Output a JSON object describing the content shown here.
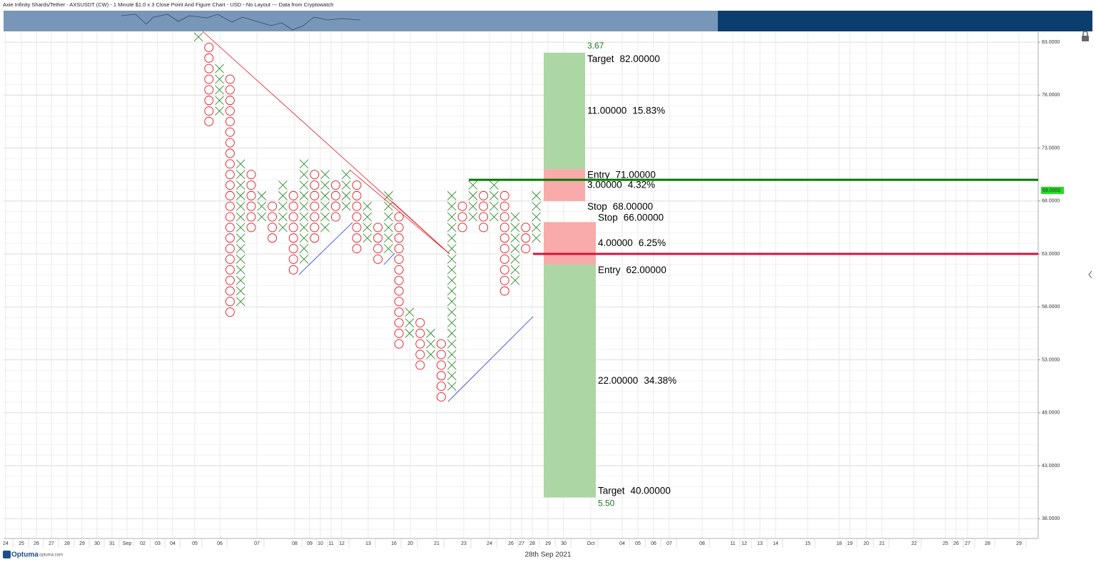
{
  "chart_data": {
    "type": "pnf",
    "title": "Axie Infinity Shards/Tether - AXSUSDT (CW) - 1 Minute $1.0 x 3 Close Point And Figure Chart - USD - No Layout --- Data from Cryptowatch",
    "ylim": [
      36.8,
      83.95
    ],
    "yticks": [
      {
        "value": 83,
        "label": "83.0000"
      },
      {
        "value": 78,
        "label": "78.0000"
      },
      {
        "value": 73,
        "label": "73.0000"
      },
      {
        "value": 68,
        "label": "68.0000"
      },
      {
        "value": 63,
        "label": "63.0000"
      },
      {
        "value": 58,
        "label": "58.0000"
      },
      {
        "value": 53,
        "label": "53.0000"
      },
      {
        "value": 48,
        "label": "48.0000"
      },
      {
        "value": 43,
        "label": "43.0000"
      },
      {
        "value": 38,
        "label": "38.0000"
      }
    ],
    "grid": true,
    "x_labels": [
      "24",
      "25",
      "26",
      "27",
      "28",
      "29",
      "30",
      "31",
      "Sep",
      "02",
      "03",
      "04",
      "05",
      "06",
      "07",
      "08",
      "09",
      "10",
      "11",
      "12",
      "13",
      "16",
      "20",
      "21",
      "23",
      "24",
      "26",
      "27",
      "28",
      "29",
      "30",
      "Oct",
      "04",
      "05",
      "06",
      "07",
      "08",
      "11",
      "12",
      "13",
      "14",
      "15",
      "18",
      "19",
      "20",
      "21",
      "22",
      "25",
      "26",
      "27",
      "28",
      "29"
    ],
    "x_caption": "28th Sep 2021",
    "x_color": "#2e8b2e",
    "o_color": "#e8141e",
    "columns": [
      {
        "kind": "X",
        "low": 83,
        "high": 84
      },
      {
        "kind": "O",
        "low": 75,
        "high": 83
      },
      {
        "kind": "X",
        "low": 76,
        "high": 81
      },
      {
        "kind": "O",
        "low": 57,
        "high": 80
      },
      {
        "kind": "X",
        "low": 58,
        "high": 72
      },
      {
        "kind": "O",
        "low": 65,
        "high": 71
      },
      {
        "kind": "X",
        "low": 66,
        "high": 69
      },
      {
        "kind": "O",
        "low": 64,
        "high": 68
      },
      {
        "kind": "X",
        "low": 65,
        "high": 70
      },
      {
        "kind": "O",
        "low": 61,
        "high": 69
      },
      {
        "kind": "X",
        "low": 62,
        "high": 72
      },
      {
        "kind": "O",
        "low": 64,
        "high": 71
      },
      {
        "kind": "X",
        "low": 65,
        "high": 71
      },
      {
        "kind": "O",
        "low": 66,
        "high": 70
      },
      {
        "kind": "X",
        "low": 67,
        "high": 71
      },
      {
        "kind": "O",
        "low": 63,
        "high": 70
      },
      {
        "kind": "X",
        "low": 64,
        "high": 68
      },
      {
        "kind": "O",
        "low": 62,
        "high": 66
      },
      {
        "kind": "X",
        "low": 63,
        "high": 69
      },
      {
        "kind": "O",
        "low": 54,
        "high": 67
      },
      {
        "kind": "X",
        "low": 55,
        "high": 58
      },
      {
        "kind": "O",
        "low": 52,
        "high": 57
      },
      {
        "kind": "X",
        "low": 53,
        "high": 56
      },
      {
        "kind": "O",
        "low": 49,
        "high": 55
      },
      {
        "kind": "X",
        "low": 50,
        "high": 69
      },
      {
        "kind": "O",
        "low": 65,
        "high": 68
      },
      {
        "kind": "X",
        "low": 66,
        "high": 70
      },
      {
        "kind": "O",
        "low": 65,
        "high": 69
      },
      {
        "kind": "X",
        "low": 66,
        "high": 70
      },
      {
        "kind": "O",
        "low": 59,
        "high": 69
      },
      {
        "kind": "X",
        "low": 60,
        "high": 67
      },
      {
        "kind": "O",
        "low": 63,
        "high": 66
      },
      {
        "kind": "X",
        "low": 64,
        "high": 69
      }
    ],
    "levels": [
      {
        "value": 70,
        "color": "#007a00"
      },
      {
        "value": 63,
        "color": "#d4143c"
      }
    ],
    "last_price": {
      "value": 69,
      "label": "69.0000"
    },
    "setups": [
      {
        "ratio": 3.67,
        "target_text": "Target",
        "target": {
          "value": 82,
          "label": "82.00000"
        },
        "reward": {
          "value": 11,
          "label": "11.00000"
        },
        "reward_pct": {
          "value": 15.83,
          "label": "15.83%"
        },
        "entry_text": "Entry",
        "entry": {
          "value": 71,
          "label": "71.00000"
        },
        "risk": {
          "value": 3,
          "label": "3.00000"
        },
        "risk_pct": {
          "value": 4.32,
          "label": "4.32%"
        },
        "stop_text": "Stop",
        "stop": {
          "value": 68,
          "label": "68.00000"
        }
      },
      {
        "ratio": {
          "value": 5.5,
          "label": "5.50"
        },
        "target_text": "Target",
        "target": {
          "value": 40,
          "label": "40.00000"
        },
        "reward": {
          "value": 22,
          "label": "22.00000"
        },
        "reward_pct": {
          "value": 34.38,
          "label": "34.38%"
        },
        "entry_text": "Entry",
        "entry": {
          "value": 62,
          "label": "62.00000"
        },
        "risk": {
          "value": 4,
          "label": "4.00000"
        },
        "risk_pct": {
          "value": 6.25,
          "label": "6.25%"
        },
        "stop_text": "Stop",
        "stop": {
          "value": 66,
          "label": "66.00000"
        }
      }
    ],
    "brand": "Optuma",
    "brand_url": "optuma.com"
  }
}
